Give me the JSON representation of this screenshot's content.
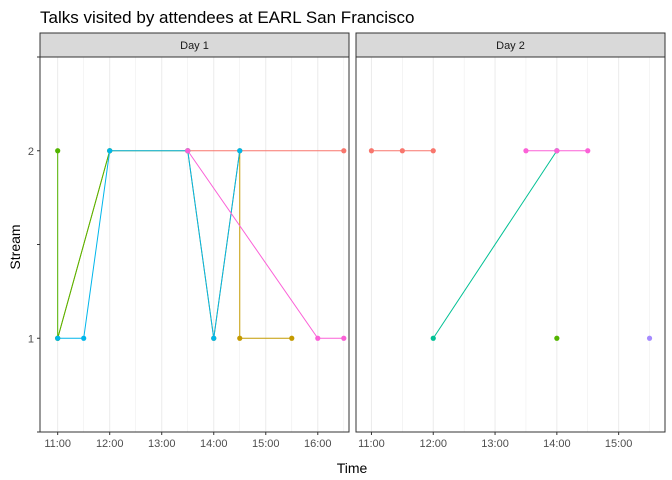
{
  "chart_data": {
    "type": "line",
    "title": "Talks visited by attendees at EARL San Francisco",
    "xlabel": "Time",
    "ylabel": "Stream",
    "grid": true,
    "x_ticks": [
      "11:00",
      "12:00",
      "13:00",
      "14:00",
      "15:00",
      "16:00"
    ],
    "y_ticks": [
      "1",
      "2"
    ],
    "ylim": [
      0.5,
      2.5
    ],
    "colors": [
      "#F8766D",
      "#C49A00",
      "#53B400",
      "#00C094",
      "#00B6EB",
      "#A58AFF",
      "#FB61D7"
    ],
    "panels": [
      {
        "strip": "Day 1",
        "xlim": [
          10.66,
          16.6
        ],
        "x_tick_values": [
          11,
          12,
          13,
          14,
          15,
          16
        ],
        "series": [
          {
            "color": "#F8766D",
            "x": [
              13.5,
              16.5
            ],
            "y": [
              2,
              2
            ]
          },
          {
            "color": "#C49A00",
            "x": [
              11,
              12,
              13.5,
              14,
              14.5,
              14.5,
              15.5
            ],
            "y": [
              1,
              2,
              2,
              1,
              2,
              1,
              1
            ]
          },
          {
            "color": "#53B400",
            "x": [
              11,
              11,
              12
            ],
            "y": [
              2,
              1,
              2
            ]
          },
          {
            "color": "#00B6EB",
            "x": [
              11,
              11.5,
              12,
              13.5,
              14,
              14.5
            ],
            "y": [
              1,
              1,
              2,
              2,
              1,
              2
            ]
          },
          {
            "color": "#FB61D7",
            "x": [
              13.5,
              16,
              16.5
            ],
            "y": [
              2,
              1,
              1
            ]
          }
        ]
      },
      {
        "strip": "Day 2",
        "xlim": [
          10.75,
          15.75
        ],
        "x_tick_values": [
          11,
          12,
          13,
          14,
          15
        ],
        "series": [
          {
            "color": "#F8766D",
            "x": [
              11,
              11.5,
              12
            ],
            "y": [
              2,
              2,
              2
            ]
          },
          {
            "color": "#00C094",
            "x": [
              12,
              14
            ],
            "y": [
              1,
              2
            ]
          },
          {
            "color": "#FB61D7",
            "x": [
              13.5,
              14,
              14.5
            ],
            "y": [
              2,
              2,
              2
            ]
          },
          {
            "color": "#53B400",
            "x": [
              14
            ],
            "y": [
              1
            ]
          },
          {
            "color": "#A58AFF",
            "x": [
              15.5
            ],
            "y": [
              1
            ]
          }
        ]
      }
    ]
  }
}
